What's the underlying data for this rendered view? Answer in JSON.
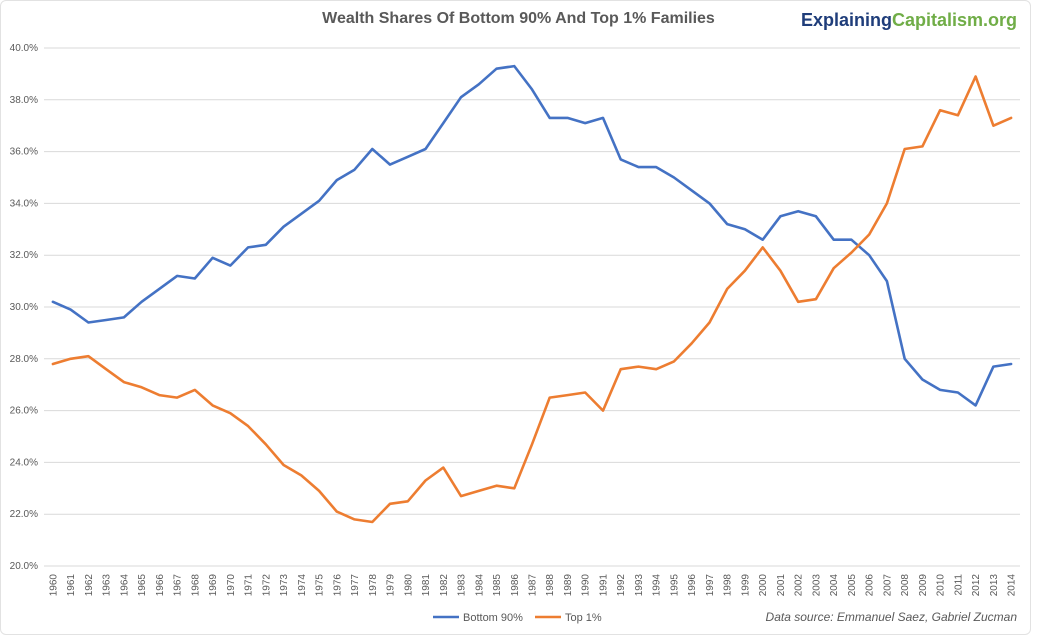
{
  "brand": {
    "part1": "Explaining",
    "part2": "Capitalism.org",
    "color1": "#1f3d7a",
    "color2": "#70ad47"
  },
  "source_note": "Data source: Emmanuel Saez, Gabriel Zucman",
  "chart_data": {
    "type": "line",
    "title": "Wealth Shares Of Bottom 90% And Top 1% Families",
    "xlabel": "",
    "ylabel": "",
    "ylim": [
      20,
      40
    ],
    "yticks": [
      "20.0%",
      "22.0%",
      "24.0%",
      "26.0%",
      "28.0%",
      "30.0%",
      "32.0%",
      "34.0%",
      "36.0%",
      "38.0%",
      "40.0%"
    ],
    "grid": true,
    "legend_position": "bottom",
    "x": [
      "1960",
      "1961",
      "1962",
      "1963",
      "1964",
      "1965",
      "1966",
      "1967",
      "1968",
      "1969",
      "1970",
      "1971",
      "1972",
      "1973",
      "1974",
      "1975",
      "1976",
      "1977",
      "1978",
      "1979",
      "1980",
      "1981",
      "1982",
      "1983",
      "1984",
      "1985",
      "1986",
      "1987",
      "1988",
      "1989",
      "1990",
      "1991",
      "1992",
      "1993",
      "1994",
      "1995",
      "1996",
      "1997",
      "1998",
      "1999",
      "2000",
      "2001",
      "2002",
      "2003",
      "2004",
      "2005",
      "2006",
      "2007",
      "2008",
      "2009",
      "2010",
      "2011",
      "2012",
      "2013",
      "2014"
    ],
    "series": [
      {
        "name": "Bottom 90%",
        "color": "#4472c4",
        "values": [
          30.2,
          29.9,
          29.4,
          29.5,
          29.6,
          30.2,
          30.7,
          31.2,
          31.1,
          31.9,
          31.6,
          32.3,
          32.4,
          33.1,
          33.6,
          34.1,
          34.9,
          35.3,
          36.1,
          35.5,
          35.8,
          36.1,
          37.1,
          38.1,
          38.6,
          39.2,
          39.3,
          38.4,
          37.3,
          37.3,
          37.1,
          37.3,
          35.7,
          35.4,
          35.4,
          35.0,
          34.5,
          34.0,
          33.2,
          33.0,
          32.6,
          33.5,
          33.7,
          33.5,
          32.6,
          32.6,
          32.0,
          31.0,
          28.0,
          27.2,
          26.8,
          26.7,
          26.2,
          27.7,
          27.8
        ]
      },
      {
        "name": "Top 1%",
        "color": "#ed7d31",
        "values": [
          27.8,
          28.0,
          28.1,
          27.6,
          27.1,
          26.9,
          26.6,
          26.5,
          26.8,
          26.2,
          25.9,
          25.4,
          24.7,
          23.9,
          23.5,
          22.9,
          22.1,
          21.8,
          21.7,
          22.4,
          22.5,
          23.3,
          23.8,
          22.7,
          22.9,
          23.1,
          23.0,
          24.7,
          26.5,
          26.6,
          26.7,
          26.0,
          27.6,
          27.7,
          27.6,
          27.9,
          28.6,
          29.4,
          30.7,
          31.4,
          32.3,
          31.4,
          30.2,
          30.3,
          31.5,
          32.1,
          32.8,
          34.0,
          36.1,
          36.2,
          37.6,
          37.4,
          38.9,
          37.0,
          37.3
        ]
      }
    ]
  }
}
